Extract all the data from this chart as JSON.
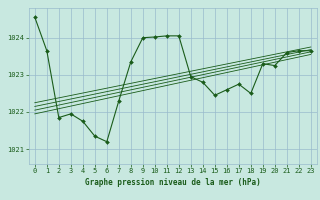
{
  "title": "Graphe pression niveau de la mer (hPa)",
  "bg_color": "#c8e8e0",
  "grid_color": "#99bbcc",
  "line_color": "#1a5c1a",
  "marker_color": "#1a5c1a",
  "x_ticks": [
    0,
    1,
    2,
    3,
    4,
    5,
    6,
    7,
    8,
    9,
    10,
    11,
    12,
    13,
    14,
    15,
    16,
    17,
    18,
    19,
    20,
    21,
    22,
    23
  ],
  "xlim": [
    -0.5,
    23.5
  ],
  "ylim": [
    1020.6,
    1024.8
  ],
  "y_ticks": [
    1021,
    1022,
    1023,
    1024
  ],
  "main_line_x": [
    0,
    1,
    2,
    3,
    4,
    5,
    6,
    7,
    8,
    9,
    10,
    11,
    12,
    13,
    14,
    15,
    16,
    17,
    18,
    19,
    20,
    21,
    22,
    23
  ],
  "main_line_y": [
    1024.55,
    1023.65,
    1021.85,
    1021.95,
    1021.75,
    1021.35,
    1021.2,
    1022.3,
    1023.35,
    1024.0,
    1024.02,
    1024.05,
    1024.05,
    1022.95,
    1022.8,
    1022.45,
    1022.6,
    1022.75,
    1022.5,
    1023.3,
    1023.25,
    1023.6,
    1023.65,
    1023.65
  ],
  "trend_lines": [
    {
      "x": [
        0,
        23
      ],
      "y": [
        1021.95,
        1023.55
      ]
    },
    {
      "x": [
        0,
        23
      ],
      "y": [
        1022.05,
        1023.62
      ]
    },
    {
      "x": [
        0,
        23
      ],
      "y": [
        1022.15,
        1023.68
      ]
    },
    {
      "x": [
        0,
        23
      ],
      "y": [
        1022.25,
        1023.75
      ]
    }
  ],
  "title_fontsize": 5.5,
  "tick_fontsize": 5.0
}
